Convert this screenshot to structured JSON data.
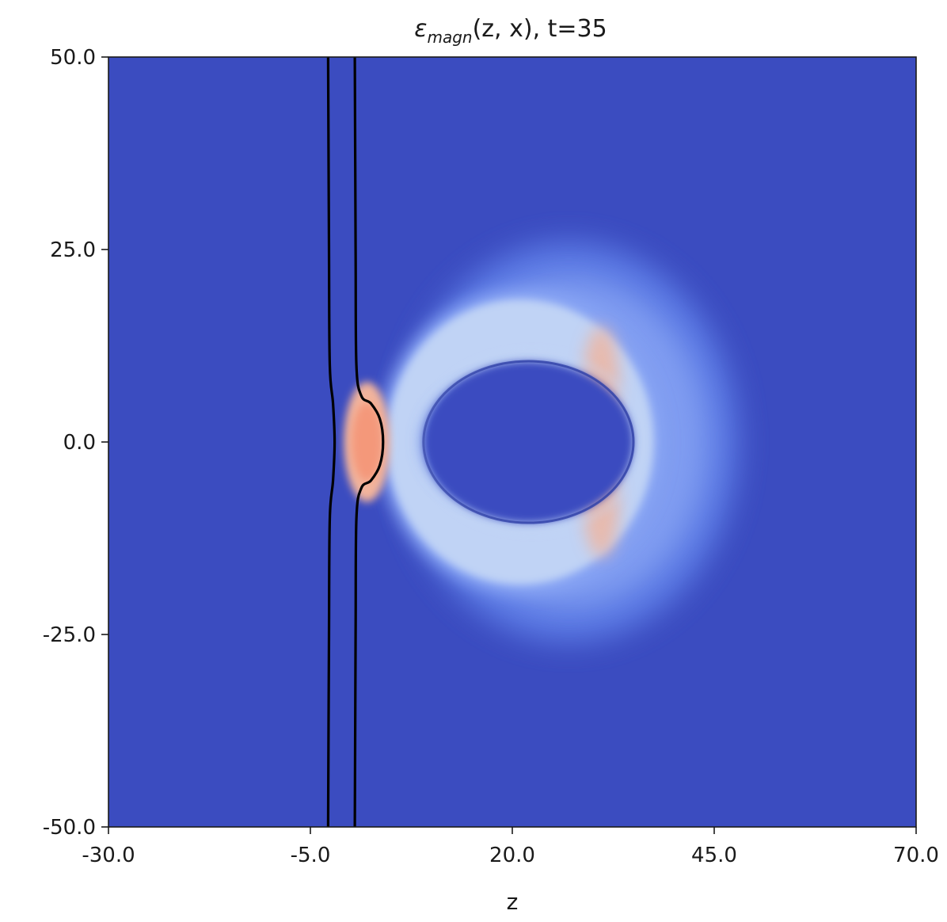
{
  "chart_data": {
    "type": "heatmap",
    "title": "ε_magn(z, x), t=35",
    "title_parts": {
      "symbol": "ε",
      "subscript": "magn",
      "args": "(z, x), t=35"
    },
    "xlabel": "z",
    "ylabel": "",
    "xlim": [
      -30,
      70
    ],
    "ylim": [
      -50,
      50
    ],
    "x_ticks": [
      -30,
      -5,
      20,
      45,
      70
    ],
    "x_tick_labels": [
      "-30.0",
      "-5.0",
      "20.0",
      "45.0",
      "70.0"
    ],
    "y_ticks": [
      50,
      25,
      0,
      -25,
      -50
    ],
    "y_tick_labels": [
      "50.0",
      "25.0",
      "0.0",
      "-25.0",
      "-50.0"
    ],
    "colormap": "coolwarm",
    "colors": {
      "background": "#3b4cc0",
      "ring_outer": "#5f7fe8",
      "ring_mid": "#8ca8f5",
      "ring_inner": "#c0d3f5",
      "hot": "#f2b49c",
      "hotter": "#f4987a",
      "contour": "#000000"
    },
    "features": {
      "outer_halo": {
        "center": [
          27,
          0
        ],
        "rx": 21,
        "ry": 26
      },
      "bright_ring": {
        "center": [
          21,
          0
        ],
        "rx": 16.5,
        "ry": 18.5
      },
      "inner_cavity": {
        "center": [
          22,
          0
        ],
        "rx": 13,
        "ry": 10.5
      },
      "hot_spot": {
        "center": [
          2,
          0
        ],
        "rx": 2.2,
        "ry": 6
      }
    },
    "contours": [
      {
        "name": "contour-left",
        "points": [
          [
            -2.8,
            50
          ],
          [
            -2.7,
            25
          ],
          [
            -2.6,
            10
          ],
          [
            -2.2,
            5
          ],
          [
            -2.0,
            0
          ],
          [
            -2.2,
            -5
          ],
          [
            -2.6,
            -10
          ],
          [
            -2.7,
            -25
          ],
          [
            -2.8,
            -50
          ]
        ]
      },
      {
        "name": "contour-right",
        "points": [
          [
            0.5,
            50
          ],
          [
            0.6,
            25
          ],
          [
            0.7,
            10
          ],
          [
            1.3,
            6
          ],
          [
            2.5,
            5
          ],
          [
            3.6,
            3
          ],
          [
            4.0,
            0
          ],
          [
            3.6,
            -3
          ],
          [
            2.5,
            -5
          ],
          [
            1.3,
            -6
          ],
          [
            0.7,
            -10
          ],
          [
            0.6,
            -25
          ],
          [
            0.5,
            -50
          ]
        ]
      }
    ]
  }
}
